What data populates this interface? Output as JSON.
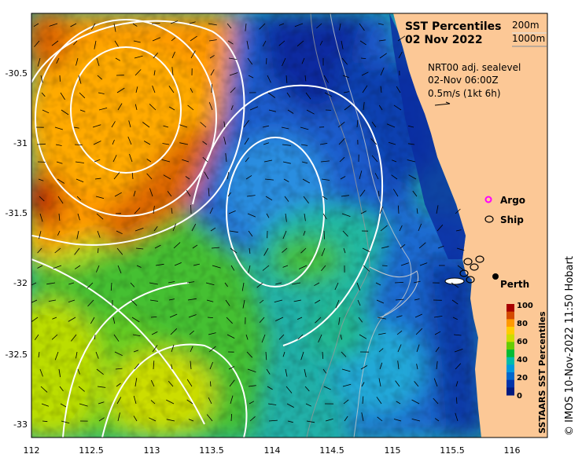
{
  "map": {
    "title_line1": "SST Percentiles",
    "title_line2": "02 Nov 2022",
    "depth_200": "200m",
    "depth_1000": "1000m",
    "current_line1": "NRT00 adj. sealevel",
    "current_line2": "02-Nov 06:00Z",
    "current_line3": "0.5m/s (1kt 6h)",
    "legend_argo": "Argo",
    "legend_ship": "Ship",
    "city_label": "Perth",
    "credit": "© IMOS 10-Nov-2022 11:50 Hobart",
    "colorbar_title": "SSTAARS SST Percentiles",
    "colorbar_ticks": [
      "100",
      "80",
      "60",
      "40",
      "20",
      "0"
    ],
    "colorbar_colors": [
      "#a80000",
      "#d44a00",
      "#ff9900",
      "#ffcc00",
      "#ccdd00",
      "#66cc00",
      "#00bb33",
      "#00bbaa",
      "#0099dd",
      "#0066cc",
      "#0033aa",
      "#001a80"
    ],
    "x_ticks": [
      "112",
      "112.5",
      "113",
      "113.5",
      "114",
      "114.5",
      "115",
      "115.5",
      "116"
    ],
    "y_ticks": [
      "-30.5",
      "-31",
      "-31.5",
      "-32",
      "-32.5",
      "-33"
    ],
    "x_range": [
      112,
      116.3
    ],
    "y_range": [
      -30.08,
      -33.12
    ],
    "land_color": "#fcc896",
    "argo_color": "#ff00ff"
  }
}
